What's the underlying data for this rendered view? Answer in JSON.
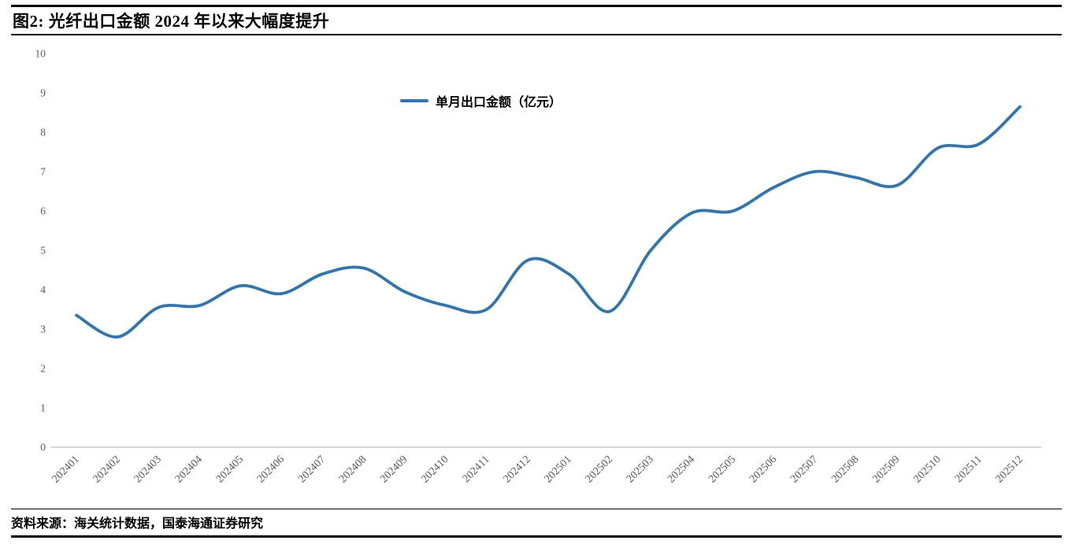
{
  "header": {
    "title": "图2: 光纤出口金额 2024 年以来大幅度提升"
  },
  "footer": {
    "source": "资料来源：海关统计数据，国泰海通证券研究"
  },
  "chart_data": {
    "type": "line",
    "title": "图2: 光纤出口金额 2024 年以来大幅度提升",
    "xlabel": "",
    "ylabel": "",
    "categories": [
      "202401",
      "202402",
      "202403",
      "202404",
      "202405",
      "202406",
      "202407",
      "202408",
      "202409",
      "202410",
      "202411",
      "202412",
      "202501",
      "202502",
      "202503",
      "202504",
      "202505",
      "202506",
      "202507",
      "202508",
      "202509",
      "202510",
      "202511",
      "202512"
    ],
    "series": [
      {
        "name": "单月出口金额（亿元）",
        "color": "#2E75B6",
        "values": [
          3.35,
          2.8,
          3.55,
          3.6,
          4.1,
          3.9,
          4.4,
          4.55,
          3.95,
          3.6,
          3.5,
          4.75,
          4.4,
          3.45,
          5.0,
          5.95,
          6.0,
          6.6,
          7.0,
          6.85,
          6.65,
          7.6,
          7.7,
          8.65
        ]
      }
    ],
    "ylim": [
      0,
      10
    ],
    "ytick_step": 1,
    "grid": false,
    "legend_position": "top-center",
    "line_smoothing": true,
    "axis_color": "#C0C0C0",
    "tick_label_color": "#595959"
  }
}
